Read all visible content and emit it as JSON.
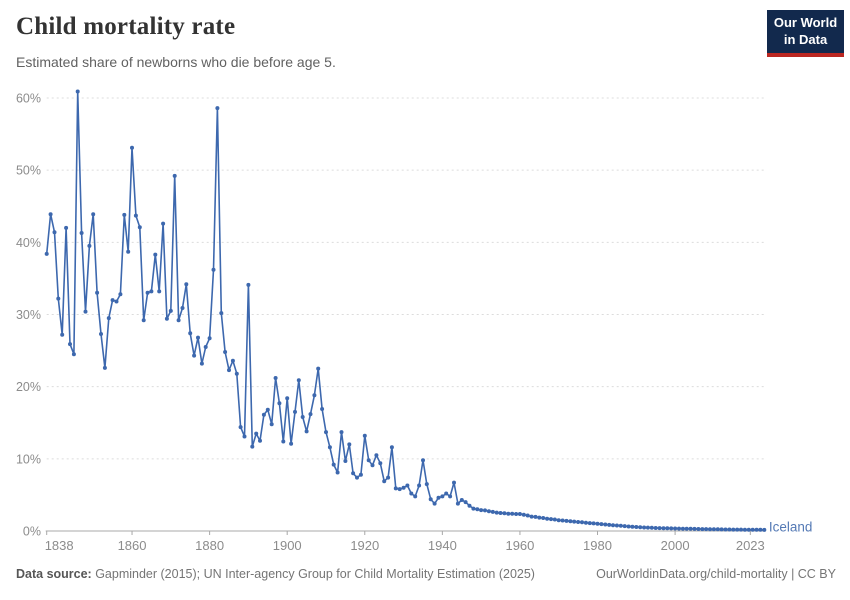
{
  "header": {
    "title": "Child mortality rate",
    "subtitle": "Estimated share of newborns who die before age 5.",
    "logo": {
      "line1": "Our World",
      "line2": "in Data"
    }
  },
  "footer": {
    "source_label": "Data source:",
    "source_text": " Gapminder (2015); UN Inter-agency Group for Child Mortality Estimation (2025)",
    "right_text": "OurWorldinData.org/child-mortality | CC BY"
  },
  "chart_data": {
    "type": "line",
    "title": "Child mortality rate",
    "entity": "Iceland",
    "unit": "%",
    "x_range": [
      1838,
      2023
    ],
    "ylim": [
      0,
      60
    ],
    "grid": "dashed-horizontal",
    "legend_position": "end-of-line-label",
    "line_color": "#3d68ae",
    "entity_label_color": "#557ab5",
    "grid_color": "#dcdcdc",
    "axis_color": "#a8a8a8",
    "tick_text_color": "#8c8c8c",
    "y_ticks": [
      "0%",
      "10%",
      "20%",
      "30%",
      "40%",
      "50%",
      "60%"
    ],
    "x_ticks": [
      "1838",
      "1860",
      "1880",
      "1900",
      "1920",
      "1940",
      "1960",
      "1980",
      "2000",
      "2023"
    ],
    "series": [
      {
        "name": "Iceland",
        "points": [
          [
            1838,
            38.4
          ],
          [
            1839,
            43.9
          ],
          [
            1840,
            41.4
          ],
          [
            1841,
            32.2
          ],
          [
            1842,
            27.2
          ],
          [
            1843,
            42.0
          ],
          [
            1844,
            25.9
          ],
          [
            1845,
            24.5
          ],
          [
            1846,
            60.9
          ],
          [
            1847,
            41.3
          ],
          [
            1848,
            30.4
          ],
          [
            1849,
            39.5
          ],
          [
            1850,
            43.9
          ],
          [
            1851,
            33.0
          ],
          [
            1852,
            27.3
          ],
          [
            1853,
            22.6
          ],
          [
            1854,
            29.5
          ],
          [
            1855,
            32.0
          ],
          [
            1856,
            31.8
          ],
          [
            1857,
            32.8
          ],
          [
            1858,
            43.8
          ],
          [
            1859,
            38.7
          ],
          [
            1860,
            53.1
          ],
          [
            1861,
            43.7
          ],
          [
            1862,
            42.1
          ],
          [
            1863,
            29.2
          ],
          [
            1864,
            33.0
          ],
          [
            1865,
            33.2
          ],
          [
            1866,
            38.3
          ],
          [
            1867,
            33.2
          ],
          [
            1868,
            42.6
          ],
          [
            1869,
            29.4
          ],
          [
            1870,
            30.5
          ],
          [
            1871,
            49.2
          ],
          [
            1872,
            29.2
          ],
          [
            1873,
            30.9
          ],
          [
            1874,
            34.2
          ],
          [
            1875,
            27.4
          ],
          [
            1876,
            24.3
          ],
          [
            1877,
            26.8
          ],
          [
            1878,
            23.2
          ],
          [
            1879,
            25.5
          ],
          [
            1880,
            26.7
          ],
          [
            1881,
            36.2
          ],
          [
            1882,
            58.6
          ],
          [
            1883,
            30.2
          ],
          [
            1884,
            24.8
          ],
          [
            1885,
            22.3
          ],
          [
            1886,
            23.6
          ],
          [
            1887,
            21.8
          ],
          [
            1888,
            14.4
          ],
          [
            1889,
            13.1
          ],
          [
            1890,
            34.1
          ],
          [
            1891,
            11.7
          ],
          [
            1892,
            13.5
          ],
          [
            1893,
            12.5
          ],
          [
            1894,
            16.1
          ],
          [
            1895,
            16.8
          ],
          [
            1896,
            14.8
          ],
          [
            1897,
            21.2
          ],
          [
            1898,
            17.7
          ],
          [
            1899,
            12.4
          ],
          [
            1900,
            18.4
          ],
          [
            1901,
            12.1
          ],
          [
            1902,
            16.5
          ],
          [
            1903,
            20.9
          ],
          [
            1904,
            15.8
          ],
          [
            1905,
            13.8
          ],
          [
            1906,
            16.2
          ],
          [
            1907,
            18.8
          ],
          [
            1908,
            22.5
          ],
          [
            1909,
            16.9
          ],
          [
            1910,
            13.7
          ],
          [
            1911,
            11.6
          ],
          [
            1912,
            9.2
          ],
          [
            1913,
            8.1
          ],
          [
            1914,
            13.7
          ],
          [
            1915,
            9.7
          ],
          [
            1916,
            12.0
          ],
          [
            1917,
            8.0
          ],
          [
            1918,
            7.4
          ],
          [
            1919,
            7.8
          ],
          [
            1920,
            13.2
          ],
          [
            1921,
            9.8
          ],
          [
            1922,
            9.1
          ],
          [
            1923,
            10.5
          ],
          [
            1924,
            9.4
          ],
          [
            1925,
            6.9
          ],
          [
            1926,
            7.4
          ],
          [
            1927,
            11.6
          ],
          [
            1928,
            5.9
          ],
          [
            1929,
            5.8
          ],
          [
            1930,
            6.0
          ],
          [
            1931,
            6.3
          ],
          [
            1932,
            5.2
          ],
          [
            1933,
            4.8
          ],
          [
            1934,
            6.3
          ],
          [
            1935,
            9.8
          ],
          [
            1936,
            6.5
          ],
          [
            1937,
            4.4
          ],
          [
            1938,
            3.8
          ],
          [
            1939,
            4.6
          ],
          [
            1940,
            4.8
          ],
          [
            1941,
            5.2
          ],
          [
            1942,
            4.8
          ],
          [
            1943,
            6.7
          ],
          [
            1944,
            3.8
          ],
          [
            1945,
            4.3
          ],
          [
            1946,
            4.0
          ],
          [
            1947,
            3.5
          ],
          [
            1948,
            3.1
          ],
          [
            1949,
            3.0
          ],
          [
            1950,
            2.9
          ],
          [
            1951,
            2.85
          ],
          [
            1952,
            2.75
          ],
          [
            1953,
            2.65
          ],
          [
            1954,
            2.55
          ],
          [
            1955,
            2.5
          ],
          [
            1956,
            2.45
          ],
          [
            1957,
            2.4
          ],
          [
            1958,
            2.4
          ],
          [
            1959,
            2.35
          ],
          [
            1960,
            2.35
          ],
          [
            1961,
            2.25
          ],
          [
            1962,
            2.15
          ],
          [
            1963,
            2.0
          ],
          [
            1964,
            1.95
          ],
          [
            1965,
            1.85
          ],
          [
            1966,
            1.8
          ],
          [
            1967,
            1.7
          ],
          [
            1968,
            1.65
          ],
          [
            1969,
            1.6
          ],
          [
            1970,
            1.5
          ],
          [
            1971,
            1.45
          ],
          [
            1972,
            1.4
          ],
          [
            1973,
            1.35
          ],
          [
            1974,
            1.3
          ],
          [
            1975,
            1.25
          ],
          [
            1976,
            1.2
          ],
          [
            1977,
            1.15
          ],
          [
            1978,
            1.1
          ],
          [
            1979,
            1.05
          ],
          [
            1980,
            1.0
          ],
          [
            1981,
            0.95
          ],
          [
            1982,
            0.9
          ],
          [
            1983,
            0.85
          ],
          [
            1984,
            0.8
          ],
          [
            1985,
            0.76
          ],
          [
            1986,
            0.72
          ],
          [
            1987,
            0.68
          ],
          [
            1988,
            0.63
          ],
          [
            1989,
            0.59
          ],
          [
            1990,
            0.55
          ],
          [
            1991,
            0.52
          ],
          [
            1992,
            0.49
          ],
          [
            1993,
            0.47
          ],
          [
            1994,
            0.44
          ],
          [
            1995,
            0.42
          ],
          [
            1996,
            0.4
          ],
          [
            1997,
            0.38
          ],
          [
            1998,
            0.37
          ],
          [
            1999,
            0.36
          ],
          [
            2000,
            0.35
          ],
          [
            2001,
            0.33
          ],
          [
            2002,
            0.32
          ],
          [
            2003,
            0.31
          ],
          [
            2004,
            0.3
          ],
          [
            2005,
            0.29
          ],
          [
            2006,
            0.28
          ],
          [
            2007,
            0.27
          ],
          [
            2008,
            0.26
          ],
          [
            2009,
            0.25
          ],
          [
            2010,
            0.24
          ],
          [
            2011,
            0.23
          ],
          [
            2012,
            0.22
          ],
          [
            2013,
            0.21
          ],
          [
            2014,
            0.21
          ],
          [
            2015,
            0.2
          ],
          [
            2016,
            0.19
          ],
          [
            2017,
            0.19
          ],
          [
            2018,
            0.18
          ],
          [
            2019,
            0.17
          ],
          [
            2020,
            0.17
          ],
          [
            2021,
            0.16
          ],
          [
            2022,
            0.16
          ],
          [
            2023,
            0.15
          ]
        ]
      }
    ]
  }
}
